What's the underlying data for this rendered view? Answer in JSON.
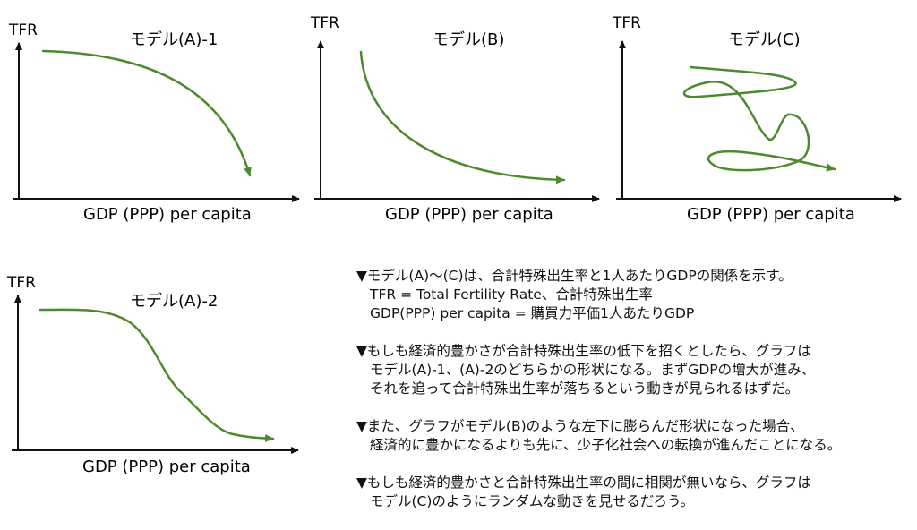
{
  "colors": {
    "curve": "#4d8a2e",
    "axis": "#111111",
    "text": "#111111"
  },
  "panels": {
    "a1": {
      "y_label": "TFR",
      "title": "モデル(A)-1",
      "x_label": "GDP (PPP) per capita"
    },
    "b": {
      "y_label": "TFR",
      "title": "モデル(B)",
      "x_label": "GDP (PPP) per capita"
    },
    "c": {
      "y_label": "TFR",
      "title": "モデル(C)",
      "x_label": "GDP (PPP) per capita"
    },
    "a2": {
      "y_label": "TFR",
      "title": "モデル(A)-2",
      "x_label": "GDP (PPP) per capita"
    }
  },
  "notes": [
    {
      "lines": [
        "▼モデル(A)〜(C)は、合計特殊出生率と1人あたりGDPの関係を示す。",
        "TFR = Total Fertility Rate、合計特殊出生率",
        "GDP(PPP) per capita = 購買力平価1人あたりGDP"
      ]
    },
    {
      "lines": [
        "▼もしも経済的豊かさが合計特殊出生率の低下を招くとしたら、グラフは",
        "モデル(A)-1、(A)-2のどちらかの形状になる。まずGDPの増大が進み、",
        "それを追って合計特殊出生率が落ちるという動きが見られるはずだ。"
      ]
    },
    {
      "lines": [
        "▼また、グラフがモデル(B)のような左下に膨らんだ形状になった場合、",
        "経済的に豊かになるよりも先に、少子化社会への転換が進んだことになる。"
      ]
    },
    {
      "lines": [
        "▼もしも経済的豊かさと合計特殊出生率の間に相関が無いなら、グラフは",
        "モデル(C)のようにランダムな動きを見せるだろう。"
      ]
    }
  ]
}
